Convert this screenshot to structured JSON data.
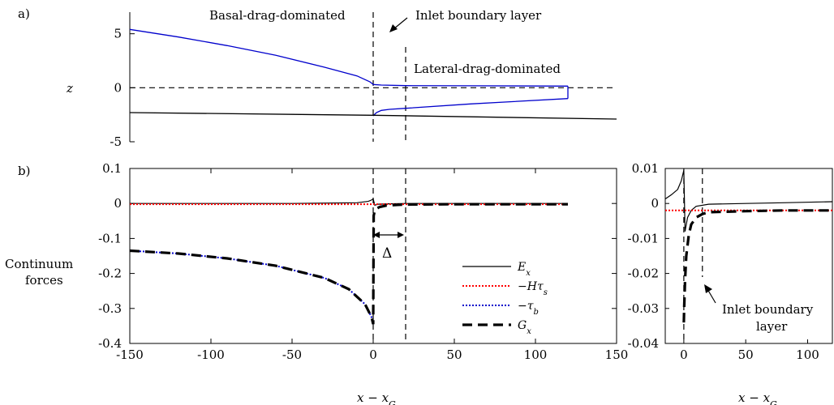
{
  "chart_data": [
    {
      "panel_label": "a)",
      "type": "line",
      "ylabel": "z",
      "xlim": [
        -150,
        150
      ],
      "ylim": [
        -5,
        7
      ],
      "yticks": [
        5,
        0,
        -5
      ],
      "annotations": [
        "Basal-drag-dominated",
        "Inlet boundary layer",
        "Lateral-drag-dominated"
      ],
      "vlines": [
        0,
        20
      ],
      "series": [
        {
          "color": "#0000cc",
          "x": [
            -150,
            -120,
            -90,
            -60,
            -30,
            -10,
            -2,
            0
          ],
          "y": [
            5.4,
            4.7,
            3.9,
            3.0,
            1.9,
            1.1,
            0.55,
            0.3
          ]
        },
        {
          "color": "#0000cc",
          "x": [
            0,
            5,
            20,
            60,
            120
          ],
          "y": [
            0.3,
            0.25,
            0.2,
            0.18,
            0.15
          ]
        },
        {
          "color": "#0000cc",
          "x": [
            0,
            2,
            5,
            10,
            20,
            60,
            120
          ],
          "y": [
            -2.6,
            -2.3,
            -2.1,
            -2.0,
            -1.9,
            -1.5,
            -1.0
          ]
        },
        {
          "color": "#000000",
          "x": [
            -150,
            0,
            150
          ],
          "y": [
            -2.3,
            -2.55,
            -2.9
          ]
        }
      ]
    },
    {
      "panel_label": "b)",
      "type": "line",
      "ylabel": "Continuum forces",
      "xlabel": "x − x_G",
      "xlim": [
        -150,
        150
      ],
      "ylim": [
        -0.4,
        0.1
      ],
      "xticks": [
        -150,
        -100,
        -50,
        0,
        50,
        100,
        150
      ],
      "yticks": [
        0.1,
        0,
        -0.1,
        -0.2,
        -0.3,
        -0.4
      ],
      "delta_label": "Δ",
      "legend_position": "lower-right",
      "vlines": [
        0,
        20
      ],
      "series": [
        {
          "name": "E_x",
          "color": "#000000",
          "x": [
            -150,
            -50,
            -10,
            -3,
            -1,
            0,
            1,
            3,
            10,
            20,
            50,
            120
          ],
          "y": [
            0,
            0,
            0.002,
            0.006,
            0.01,
            0.013,
            -0.005,
            -0.002,
            -0.001,
            0,
            0,
            0
          ]
        },
        {
          "name": "−Hτ_s",
          "color": "#ff0000",
          "x": [
            -150,
            120
          ],
          "y": [
            -0.002,
            -0.002
          ]
        },
        {
          "name": "−τ_b",
          "color": "#0000cc",
          "x": [
            -150,
            -120,
            -90,
            -60,
            -30,
            -15,
            -5,
            -1,
            0
          ],
          "y": [
            -0.135,
            -0.143,
            -0.157,
            -0.178,
            -0.213,
            -0.245,
            -0.288,
            -0.325,
            -0.345
          ]
        },
        {
          "name": "G_x",
          "color": "#000000",
          "x": [
            -150,
            -120,
            -90,
            -60,
            -30,
            -15,
            -5,
            -1,
            0,
            0.3,
            1,
            2,
            4,
            8,
            15,
            20,
            50,
            120
          ],
          "y": [
            -0.135,
            -0.143,
            -0.157,
            -0.178,
            -0.213,
            -0.245,
            -0.288,
            -0.325,
            -0.345,
            -0.035,
            -0.02,
            -0.015,
            -0.01,
            -0.006,
            -0.004,
            -0.003,
            -0.002,
            -0.002
          ]
        }
      ]
    },
    {
      "type": "line",
      "xlabel": "x − x_G",
      "xlim": [
        -15,
        120
      ],
      "ylim": [
        -0.04,
        0.01
      ],
      "xticks": [
        0,
        50,
        100
      ],
      "yticks": [
        0.01,
        0,
        -0.01,
        -0.02,
        -0.03,
        -0.04
      ],
      "annotation": "Inlet boundary layer",
      "vlines": [
        0,
        15
      ],
      "series": [
        {
          "color": "#000000",
          "x": [
            -15,
            -10,
            -5,
            -2,
            0,
            1,
            3,
            6,
            10,
            20,
            50,
            80,
            120
          ],
          "y": [
            0.0013,
            0.0025,
            0.004,
            0.0065,
            0.0095,
            -0.008,
            -0.004,
            -0.002,
            -0.0008,
            -0.0002,
            0,
            0.0002,
            0.0005
          ]
        },
        {
          "color": "#ff0000",
          "x": [
            -15,
            120
          ],
          "y": [
            -0.002,
            -0.002
          ]
        },
        {
          "color": "#000000",
          "x": [
            0,
            0.3,
            1,
            2,
            4,
            6,
            10,
            15,
            20,
            50,
            80,
            120
          ],
          "y": [
            -0.034,
            -0.03,
            -0.022,
            -0.015,
            -0.009,
            -0.006,
            -0.004,
            -0.003,
            -0.0025,
            -0.0022,
            -0.002,
            -0.002
          ]
        }
      ]
    }
  ]
}
